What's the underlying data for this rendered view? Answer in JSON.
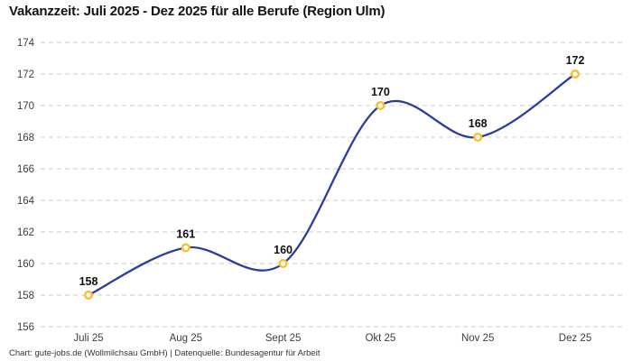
{
  "header": {
    "title": "Vakanzzeit: Juli 2025 - Dez 2025 für alle Berufe (Region Ulm)"
  },
  "footer": {
    "credit": "Chart: gute-jobs.de (Wollmilchsau GmbH) | Datenquelle: Bundesagentur für Arbeit"
  },
  "chart_data": {
    "type": "line",
    "title": "Vakanzzeit: Juli 2025 - Dez 2025 für alle Berufe (Region Ulm)",
    "categories": [
      "Juli 25",
      "Aug 25",
      "Sept 25",
      "Okt 25",
      "Nov 25",
      "Dez 25"
    ],
    "values": [
      158,
      161,
      160,
      170,
      168,
      172
    ],
    "xlabel": "",
    "ylabel": "",
    "ylim": [
      156,
      174
    ],
    "ytick_step": 2,
    "grid": "horizontal-dashed",
    "legend": "none",
    "smooth": true,
    "data_labels": true,
    "colors": {
      "line": "#2b3d9e",
      "marker_fill": "#ffffff",
      "marker_stroke": "#fbbe28",
      "grid": "#cbcbcb",
      "tick_text": "#3d3d3d",
      "data_label_text": "#111111",
      "title_text": "#141414",
      "credit_text": "#333333"
    }
  }
}
